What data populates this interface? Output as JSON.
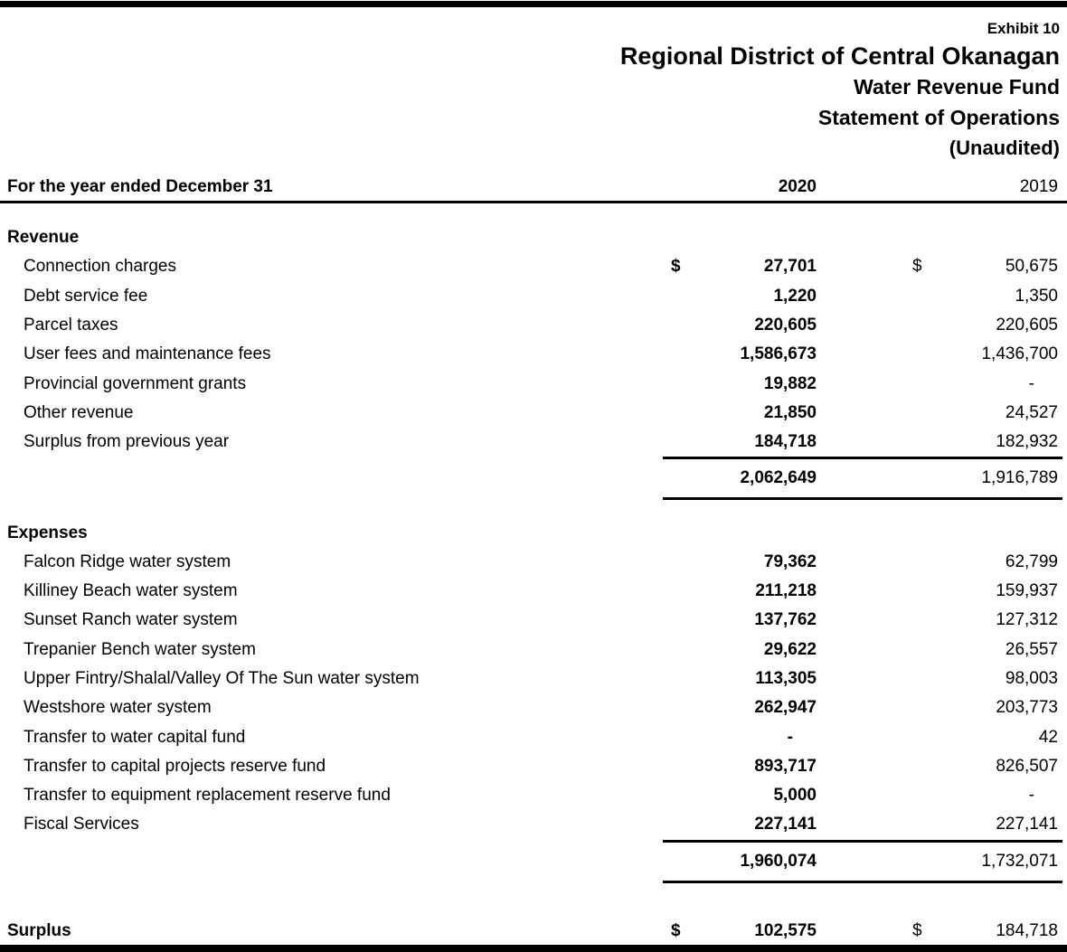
{
  "exhibit": "Exhibit 10",
  "title": "Regional District of Central Okanagan",
  "subtitle_fund": "Water Revenue Fund",
  "subtitle_statement": "Statement of Operations",
  "subtitle_audit": "(Unaudited)",
  "currency_symbol": "$",
  "header": {
    "period_label": "For the year ended December 31",
    "col_2020": "2020",
    "col_2019": "2019"
  },
  "sections": [
    {
      "name": "Revenue",
      "rows": [
        {
          "label": "Connection charges",
          "v2020": "27,701",
          "v2019": "50,675",
          "dollar": true
        },
        {
          "label": "Debt service fee",
          "v2020": "1,220",
          "v2019": "1,350"
        },
        {
          "label": "Parcel taxes",
          "v2020": "220,605",
          "v2019": "220,605"
        },
        {
          "label": "User fees and maintenance fees",
          "v2020": "1,586,673",
          "v2019": "1,436,700"
        },
        {
          "label": "Provincial government grants",
          "v2020": "19,882",
          "v2019": "-"
        },
        {
          "label": "Other revenue",
          "v2020": "21,850",
          "v2019": "24,527"
        },
        {
          "label": "Surplus from previous year",
          "v2020": "184,718",
          "v2019": "182,932",
          "rule_below": true
        }
      ],
      "total": {
        "v2020": "2,062,649",
        "v2019": "1,916,789"
      }
    },
    {
      "name": "Expenses",
      "rows": [
        {
          "label": "Falcon Ridge water system",
          "v2020": "79,362",
          "v2019": "62,799"
        },
        {
          "label": "Killiney Beach water system",
          "v2020": "211,218",
          "v2019": "159,937"
        },
        {
          "label": "Sunset Ranch water system",
          "v2020": "137,762",
          "v2019": "127,312"
        },
        {
          "label": "Trepanier Bench water system",
          "v2020": "29,622",
          "v2019": "26,557"
        },
        {
          "label": "Upper Fintry/Shalal/Valley Of The Sun water system",
          "v2020": "113,305",
          "v2019": "98,003"
        },
        {
          "label": "Westshore water system",
          "v2020": "262,947",
          "v2019": "203,773"
        },
        {
          "label": "Transfer to water capital fund",
          "v2020": "-",
          "v2019": "42"
        },
        {
          "label": "Transfer to capital projects reserve fund",
          "v2020": "893,717",
          "v2019": "826,507"
        },
        {
          "label": "Transfer to equipment replacement reserve fund",
          "v2020": "5,000",
          "v2019": "-"
        },
        {
          "label": "Fiscal Services",
          "v2020": "227,141",
          "v2019": "227,141",
          "rule_below": true
        }
      ],
      "total": {
        "v2020": "1,960,074",
        "v2019": "1,732,071"
      }
    }
  ],
  "surplus": {
    "label": "Surplus",
    "v2020": "102,575",
    "v2019": "184,718",
    "dollar": true
  }
}
